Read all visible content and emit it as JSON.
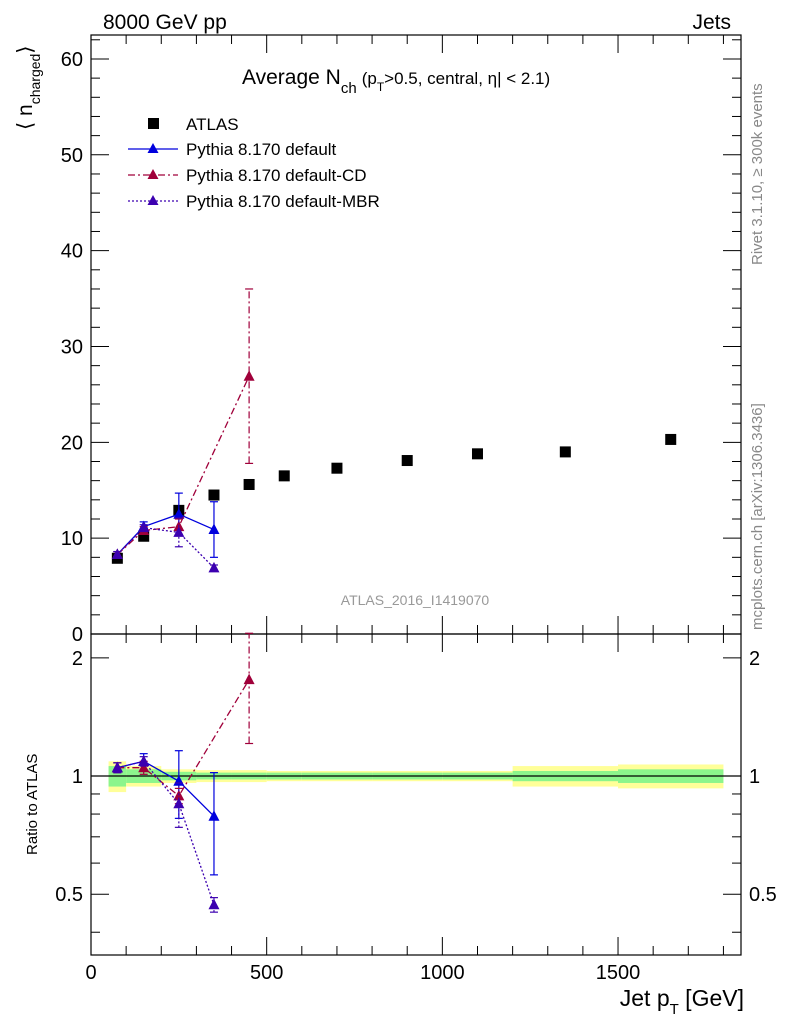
{
  "header": {
    "left": "8000 GeV pp",
    "right": "Jets",
    "side_top": "Rivet 3.1.10, ≥ 300k events",
    "side_bottom": "mcplots.cern.ch [arXiv:1306.3436]"
  },
  "title": {
    "main": "Average N",
    "main_sub": "ch",
    "cond_open": "(p",
    "cond_sub": "T",
    "cond_rest": ">0.5, central, η| < 2.1)"
  },
  "analysis_label": "ATLAS_2016_I1419070",
  "ylabel_top": {
    "base": "⟨ n",
    "sub": "charged",
    "close": "⟩"
  },
  "ylabel_bottom": "Ratio to ATLAS",
  "xlabel": {
    "base": "Jet p",
    "sub": "T",
    "unit": " [GeV]"
  },
  "colors": {
    "data": "#000000",
    "default": "#0000dd",
    "cd": "#a0003a",
    "mbr": "#3c00b0",
    "band_inner": "#8cf58c",
    "band_outer": "#ffff99"
  },
  "chart_data": [
    {
      "type": "scatter",
      "panel": "main",
      "xlim": [
        0,
        1850
      ],
      "ylim": [
        0,
        62.5
      ],
      "y_ticks": [
        "0",
        "10",
        "20",
        "30",
        "40",
        "50",
        "60"
      ],
      "series": [
        {
          "name": "ATLAS",
          "marker": "square",
          "x": [
            75,
            150,
            250,
            350,
            450,
            550,
            700,
            900,
            1100,
            1350,
            1650
          ],
          "y": [
            7.9,
            10.2,
            12.9,
            14.5,
            15.6,
            16.5,
            17.3,
            18.1,
            18.8,
            19.0,
            20.3
          ]
        },
        {
          "name": "Pythia 8.170 default",
          "style": "solid",
          "marker": "triangle",
          "x": [
            75,
            150,
            250,
            350
          ],
          "y": [
            8.3,
            11.2,
            12.5,
            10.9
          ],
          "err": [
            0.3,
            0.5,
            2.2,
            2.9
          ]
        },
        {
          "name": "Pythia 8.170 default-CD",
          "style": "dashdot",
          "marker": "triangle",
          "x": [
            75,
            150,
            250,
            450
          ],
          "y": [
            8.3,
            10.8,
            11.2,
            26.9
          ],
          "err": [
            0.3,
            0.4,
            0.8,
            9.1
          ]
        },
        {
          "name": "Pythia 8.170 default-MBR",
          "style": "dotted",
          "marker": "triangle",
          "x": [
            75,
            150,
            250,
            350
          ],
          "y": [
            8.3,
            11.1,
            10.6,
            6.9
          ],
          "err": [
            0.3,
            0.3,
            1.5,
            0.3
          ]
        }
      ]
    },
    {
      "type": "scatter",
      "panel": "ratio",
      "xlim": [
        0,
        1850
      ],
      "ylim": [
        0.35,
        2.3
      ],
      "y_ticks": [
        "0.5",
        "1",
        "2"
      ],
      "x_ticks": [
        "0",
        "500",
        "1000",
        "1500"
      ],
      "bands": {
        "edges": [
          50,
          100,
          200,
          300,
          400,
          500,
          600,
          800,
          1000,
          1200,
          1500,
          1800
        ],
        "inner": [
          0.06,
          0.04,
          0.025,
          0.02,
          0.02,
          0.02,
          0.02,
          0.02,
          0.02,
          0.03,
          0.04
        ],
        "outer": [
          0.09,
          0.06,
          0.04,
          0.035,
          0.035,
          0.03,
          0.03,
          0.03,
          0.03,
          0.06,
          0.07
        ]
      },
      "series": [
        {
          "name": "Pythia 8.170 default",
          "x": [
            75,
            150,
            250,
            350
          ],
          "y": [
            1.05,
            1.09,
            0.97,
            0.79
          ],
          "err": [
            0.03,
            0.05,
            0.19,
            0.23
          ]
        },
        {
          "name": "Pythia 8.170 default-CD",
          "x": [
            75,
            150,
            250,
            450
          ],
          "y": [
            1.05,
            1.05,
            0.89,
            1.76
          ],
          "err": [
            0.03,
            0.04,
            0.04,
            0.55
          ]
        },
        {
          "name": "Pythia 8.170 default-MBR",
          "x": [
            75,
            150,
            250,
            350
          ],
          "y": [
            1.05,
            1.09,
            0.85,
            0.47
          ],
          "err": [
            0.03,
            0.03,
            0.11,
            0.02
          ]
        }
      ]
    }
  ]
}
